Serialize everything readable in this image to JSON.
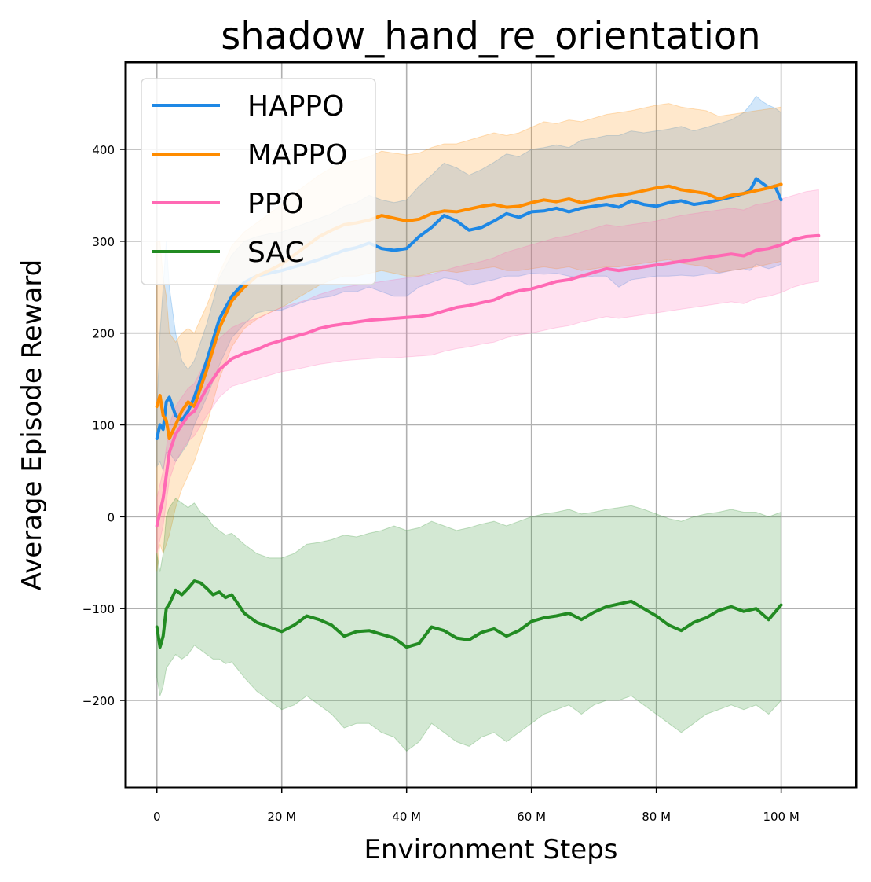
{
  "chart_data": {
    "type": "line",
    "title": "shadow_hand_re_orientation",
    "xlabel": "Environment Steps",
    "ylabel": "Average Episode Reward",
    "xlim": [
      -5,
      112
    ],
    "ylim": [
      -295,
      495
    ],
    "x_ticks": [
      0,
      20,
      40,
      60,
      80,
      100
    ],
    "x_tick_labels": [
      "0",
      "20 M",
      "40 M",
      "60 M",
      "80 M",
      "100 M"
    ],
    "y_ticks": [
      -200,
      -100,
      0,
      100,
      200,
      300,
      400
    ],
    "y_tick_labels": [
      "−200",
      "−100",
      "0",
      "100",
      "200",
      "300",
      "400"
    ],
    "grid": true,
    "legend_position": "top-left",
    "series": [
      {
        "name": "HAPPO",
        "color": "#1e88e5",
        "x": [
          0,
          0.5,
          1,
          1.5,
          2,
          3,
          4,
          5,
          6,
          8,
          10,
          12,
          14,
          16,
          18,
          20,
          22,
          24,
          26,
          28,
          30,
          32,
          34,
          36,
          38,
          40,
          42,
          44,
          46,
          48,
          50,
          52,
          54,
          56,
          58,
          60,
          62,
          64,
          66,
          68,
          70,
          72,
          74,
          76,
          78,
          80,
          82,
          84,
          86,
          88,
          90,
          92,
          94,
          95,
          96,
          97,
          98,
          99,
          100
        ],
        "y": [
          85,
          100,
          95,
          125,
          130,
          110,
          105,
          115,
          130,
          170,
          215,
          240,
          255,
          262,
          265,
          268,
          272,
          276,
          280,
          285,
          290,
          293,
          298,
          292,
          290,
          292,
          305,
          315,
          328,
          322,
          312,
          315,
          322,
          330,
          326,
          332,
          333,
          336,
          332,
          336,
          338,
          340,
          337,
          344,
          340,
          338,
          342,
          344,
          340,
          342,
          345,
          348,
          352,
          355,
          368,
          363,
          358,
          360,
          345
        ],
        "lower": [
          55,
          60,
          50,
          70,
          70,
          60,
          70,
          80,
          100,
          130,
          165,
          195,
          210,
          222,
          225,
          225,
          230,
          235,
          238,
          240,
          245,
          245,
          250,
          245,
          240,
          240,
          250,
          255,
          260,
          258,
          252,
          255,
          258,
          262,
          262,
          265,
          264,
          265,
          262,
          260,
          262,
          262,
          250,
          258,
          260,
          262,
          262,
          263,
          262,
          264,
          265,
          268,
          270,
          268,
          275,
          272,
          270,
          272,
          275
        ],
        "upper": [
          115,
          200,
          250,
          300,
          250,
          200,
          170,
          160,
          170,
          210,
          260,
          285,
          300,
          305,
          308,
          310,
          315,
          320,
          325,
          330,
          338,
          342,
          350,
          345,
          342,
          345,
          360,
          372,
          385,
          380,
          372,
          378,
          386,
          395,
          392,
          400,
          402,
          405,
          402,
          410,
          412,
          415,
          415,
          420,
          418,
          420,
          422,
          425,
          420,
          424,
          428,
          432,
          440,
          448,
          458,
          452,
          448,
          445,
          440
        ]
      },
      {
        "name": "MAPPO",
        "color": "#ff8c00",
        "x": [
          0,
          0.5,
          1,
          1.5,
          2,
          3,
          4,
          5,
          6,
          8,
          10,
          12,
          14,
          16,
          18,
          20,
          22,
          24,
          26,
          28,
          30,
          32,
          34,
          36,
          38,
          40,
          42,
          44,
          46,
          48,
          50,
          52,
          54,
          56,
          58,
          60,
          62,
          64,
          66,
          68,
          70,
          72,
          74,
          76,
          78,
          80,
          82,
          84,
          86,
          88,
          90,
          92,
          94,
          96,
          98,
          100
        ],
        "y": [
          120,
          132,
          110,
          105,
          85,
          100,
          115,
          125,
          120,
          160,
          205,
          235,
          250,
          262,
          268,
          275,
          285,
          295,
          305,
          312,
          318,
          320,
          323,
          328,
          325,
          322,
          324,
          330,
          333,
          332,
          335,
          338,
          340,
          337,
          338,
          342,
          345,
          343,
          346,
          342,
          345,
          348,
          350,
          352,
          355,
          358,
          360,
          356,
          354,
          352,
          346,
          350,
          352,
          355,
          358,
          362
        ],
        "lower": [
          -60,
          -30,
          -40,
          -30,
          -20,
          10,
          30,
          45,
          60,
          100,
          150,
          185,
          205,
          215,
          222,
          228,
          236,
          244,
          252,
          258,
          262,
          262,
          265,
          268,
          265,
          262,
          262,
          266,
          268,
          266,
          268,
          270,
          272,
          268,
          268,
          270,
          272,
          270,
          272,
          268,
          270,
          272,
          272,
          274,
          276,
          278,
          280,
          276,
          274,
          272,
          266,
          268,
          270,
          272,
          275,
          278
        ],
        "upper": [
          300,
          300,
          260,
          240,
          200,
          190,
          200,
          205,
          200,
          230,
          265,
          295,
          310,
          320,
          330,
          340,
          352,
          362,
          372,
          380,
          385,
          388,
          392,
          398,
          396,
          394,
          396,
          402,
          406,
          406,
          410,
          414,
          418,
          415,
          418,
          424,
          430,
          428,
          432,
          430,
          434,
          438,
          440,
          442,
          445,
          448,
          450,
          446,
          444,
          442,
          436,
          438,
          440,
          442,
          444,
          446
        ]
      },
      {
        "name": "PPO",
        "color": "#ff69b4",
        "x": [
          0,
          0.5,
          1,
          1.5,
          2,
          3,
          4,
          5,
          6,
          8,
          10,
          12,
          14,
          16,
          18,
          20,
          22,
          24,
          26,
          28,
          30,
          32,
          34,
          36,
          38,
          40,
          42,
          44,
          46,
          48,
          50,
          52,
          54,
          56,
          58,
          60,
          62,
          64,
          66,
          68,
          70,
          72,
          74,
          76,
          78,
          80,
          82,
          84,
          86,
          88,
          90,
          92,
          94,
          96,
          98,
          100,
          102,
          104,
          106
        ],
        "y": [
          -10,
          5,
          20,
          45,
          70,
          90,
          100,
          110,
          115,
          140,
          160,
          172,
          178,
          182,
          188,
          192,
          196,
          200,
          205,
          208,
          210,
          212,
          214,
          215,
          216,
          217,
          218,
          220,
          224,
          228,
          230,
          233,
          236,
          242,
          246,
          248,
          252,
          256,
          258,
          262,
          266,
          270,
          268,
          270,
          272,
          274,
          276,
          278,
          280,
          282,
          284,
          286,
          284,
          290,
          292,
          296,
          302,
          305,
          306
        ],
        "lower": [
          -40,
          -25,
          -10,
          15,
          40,
          60,
          72,
          82,
          88,
          110,
          130,
          142,
          146,
          150,
          154,
          158,
          160,
          163,
          166,
          168,
          170,
          171,
          172,
          173,
          173,
          174,
          175,
          176,
          180,
          183,
          185,
          188,
          190,
          195,
          198,
          200,
          203,
          206,
          208,
          212,
          215,
          218,
          216,
          218,
          220,
          222,
          224,
          226,
          228,
          230,
          232,
          234,
          232,
          238,
          240,
          244,
          250,
          254,
          256
        ],
        "upper": [
          20,
          35,
          50,
          75,
          100,
          120,
          130,
          140,
          145,
          172,
          194,
          206,
          212,
          216,
          222,
          228,
          232,
          236,
          242,
          246,
          250,
          252,
          254,
          256,
          258,
          260,
          262,
          264,
          268,
          272,
          275,
          278,
          282,
          288,
          292,
          296,
          300,
          304,
          306,
          310,
          314,
          318,
          316,
          318,
          320,
          322,
          325,
          328,
          330,
          332,
          334,
          336,
          334,
          340,
          342,
          346,
          350,
          354,
          356
        ]
      },
      {
        "name": "SAC",
        "color": "#228b22",
        "x": [
          0,
          0.5,
          1,
          1.5,
          2,
          3,
          4,
          5,
          6,
          7,
          8,
          9,
          10,
          11,
          12,
          14,
          16,
          18,
          20,
          22,
          24,
          26,
          28,
          30,
          32,
          34,
          36,
          38,
          40,
          42,
          44,
          46,
          48,
          50,
          52,
          54,
          56,
          58,
          60,
          62,
          64,
          66,
          68,
          70,
          72,
          74,
          76,
          78,
          80,
          82,
          84,
          86,
          88,
          90,
          92,
          94,
          96,
          98,
          100
        ],
        "y": [
          -120,
          -142,
          -130,
          -100,
          -95,
          -80,
          -85,
          -78,
          -70,
          -72,
          -78,
          -85,
          -82,
          -88,
          -85,
          -105,
          -115,
          -120,
          -125,
          -118,
          -108,
          -112,
          -118,
          -130,
          -125,
          -124,
          -128,
          -132,
          -142,
          -138,
          -120,
          -124,
          -132,
          -134,
          -126,
          -122,
          -130,
          -124,
          -114,
          -110,
          -108,
          -105,
          -112,
          -104,
          -98,
          -95,
          -92,
          -100,
          -108,
          -118,
          -124,
          -115,
          -110,
          -102,
          -98,
          -103,
          -100,
          -112,
          -96
        ],
        "lower": [
          -175,
          -195,
          -185,
          -165,
          -160,
          -150,
          -155,
          -150,
          -140,
          -145,
          -150,
          -155,
          -155,
          -160,
          -158,
          -175,
          -190,
          -200,
          -210,
          -205,
          -195,
          -205,
          -215,
          -230,
          -225,
          -225,
          -235,
          -240,
          -255,
          -245,
          -225,
          -235,
          -245,
          -250,
          -240,
          -235,
          -245,
          -235,
          -225,
          -215,
          -210,
          -205,
          -215,
          -205,
          -200,
          -200,
          -195,
          -205,
          -215,
          -225,
          -235,
          -225,
          -215,
          -210,
          -205,
          -210,
          -205,
          -215,
          -200
        ],
        "upper": [
          -40,
          -60,
          -40,
          0,
          10,
          20,
          15,
          10,
          15,
          5,
          0,
          -10,
          -15,
          -20,
          -18,
          -30,
          -40,
          -45,
          -45,
          -40,
          -30,
          -28,
          -25,
          -20,
          -22,
          -18,
          -15,
          -10,
          -15,
          -12,
          -5,
          -10,
          -15,
          -12,
          -8,
          -5,
          -10,
          -5,
          0,
          3,
          5,
          8,
          3,
          5,
          8,
          10,
          12,
          8,
          3,
          -2,
          -5,
          0,
          3,
          5,
          8,
          5,
          5,
          0,
          5
        ]
      }
    ]
  }
}
